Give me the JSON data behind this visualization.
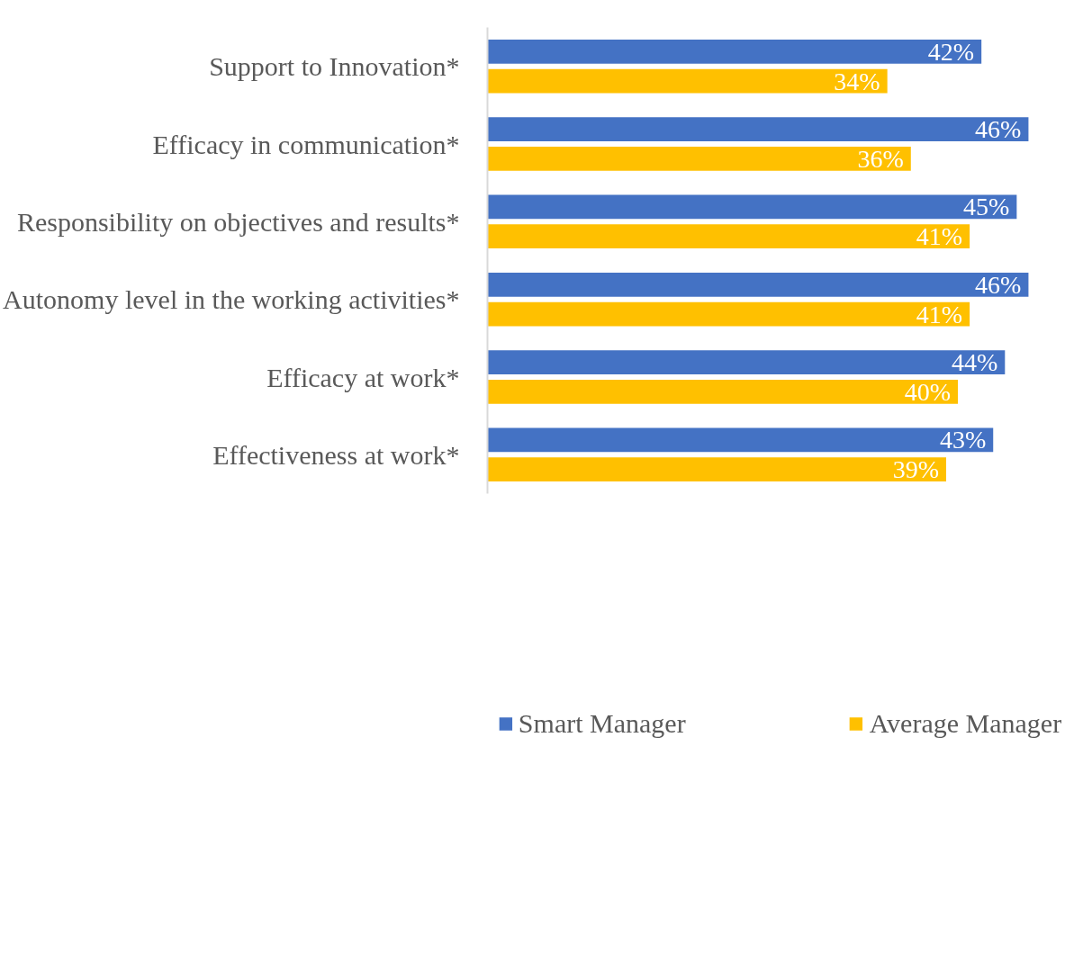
{
  "chart_data": {
    "type": "bar",
    "orientation": "horizontal",
    "categories": [
      "Support to Innovation*",
      "Efficacy in communication*",
      "Responsibility on objectives and results*",
      "Autonomy level in the working activities*",
      "Efficacy at work*",
      "Effectiveness at work*"
    ],
    "series": [
      {
        "name": "Smart Manager",
        "color": "#4472c4",
        "values": [
          42,
          46,
          45,
          46,
          44,
          43
        ],
        "value_labels": [
          "42%",
          "46%",
          "45%",
          "46%",
          "44%",
          "43%"
        ]
      },
      {
        "name": "Average Manager",
        "color": "#ffc000",
        "values": [
          34,
          36,
          41,
          41,
          40,
          39
        ],
        "value_labels": [
          "34%",
          "36%",
          "41%",
          "41%",
          "40%",
          "39%"
        ]
      }
    ],
    "tick_labels": "y",
    "grid": false,
    "legend": "bottom"
  }
}
